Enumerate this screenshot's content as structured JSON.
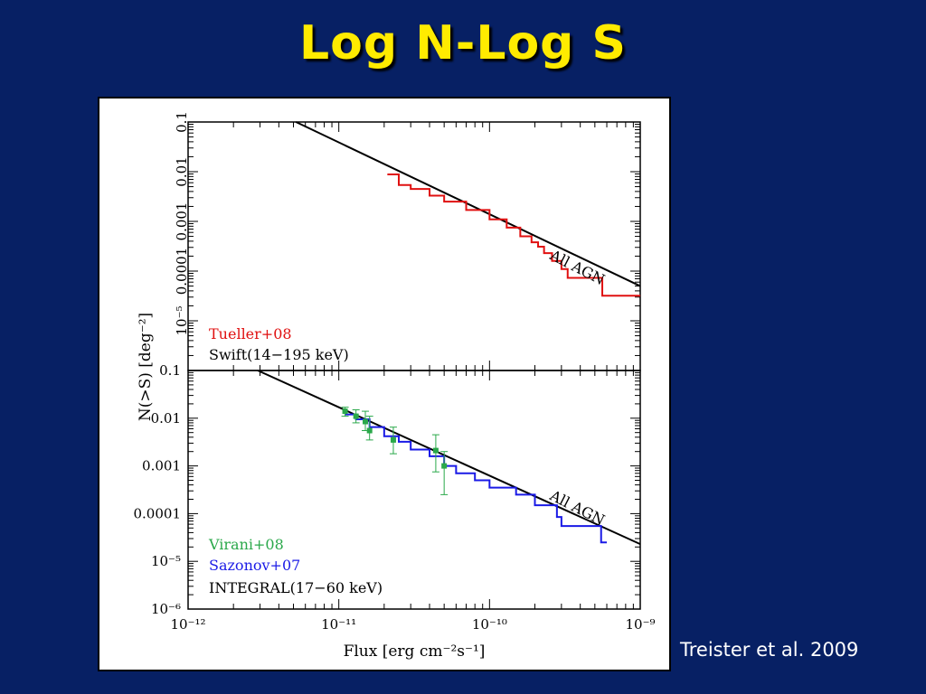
{
  "slide": {
    "title": "Log N-Log S",
    "citation": "Treister et al. 2009"
  },
  "colors": {
    "background": "#072064",
    "title": "#ffeb00",
    "tueller": "#e01010",
    "sazonov": "#1a1ae6",
    "virani": "#2aa84a",
    "model": "#000000"
  },
  "chart_data": [
    {
      "type": "line",
      "panel": "top",
      "xscale": "log",
      "yscale": "log",
      "xlim": [
        1e-12,
        1e-09
      ],
      "ylim": [
        1e-06,
        0.1
      ],
      "yticks": [
        {
          "value": 0.1,
          "label": "0.1"
        },
        {
          "value": 0.01,
          "label": "0.01"
        },
        {
          "value": 0.001,
          "label": "0.001"
        },
        {
          "value": 0.0001,
          "label": "0.0001"
        },
        {
          "value": 1e-05,
          "label": "10⁻⁵"
        }
      ],
      "legend": [
        "Tueller+08",
        "Swift(14−195 keV)"
      ],
      "annotation": "All AGN",
      "series": [
        {
          "name": "All AGN",
          "kind": "model",
          "x": [
            5.2e-12,
            1e-09
          ],
          "y": [
            0.1,
            5e-05
          ]
        },
        {
          "name": "Tueller+08",
          "kind": "step",
          "x": [
            2.1e-11,
            2.5e-11,
            3e-11,
            4e-11,
            5e-11,
            7e-11,
            1e-10,
            1.3e-10,
            1.6e-10,
            1.9e-10,
            2.1e-10,
            2.3e-10,
            2.6e-10,
            3e-10,
            3.3e-10,
            5.6e-10,
            1e-09
          ],
          "y": [
            0.0088,
            0.0054,
            0.0045,
            0.0033,
            0.0025,
            0.0017,
            0.0011,
            0.00075,
            0.0005,
            0.00038,
            0.00031,
            0.00023,
            0.00016,
            0.00011,
            7.3e-05,
            3.2e-05,
            3.2e-05
          ]
        }
      ]
    },
    {
      "type": "scatter",
      "panel": "bottom",
      "xscale": "log",
      "yscale": "log",
      "xlim": [
        1e-12,
        1e-09
      ],
      "ylim": [
        1e-06,
        0.1
      ],
      "xticks": [
        {
          "value": 1e-12,
          "label": "10⁻¹²"
        },
        {
          "value": 1e-11,
          "label": "10⁻¹¹"
        },
        {
          "value": 1e-10,
          "label": "10⁻¹⁰"
        },
        {
          "value": 1e-09,
          "label": "10⁻⁹"
        }
      ],
      "yticks": [
        {
          "value": 0.1,
          "label": "0.1"
        },
        {
          "value": 0.01,
          "label": "0.01"
        },
        {
          "value": 0.001,
          "label": "0.001"
        },
        {
          "value": 0.0001,
          "label": "0.0001"
        },
        {
          "value": 1e-05,
          "label": "10⁻⁵"
        },
        {
          "value": 1e-06,
          "label": "10⁻⁶"
        }
      ],
      "xlabel": "Flux [erg cm⁻²s⁻¹]",
      "ylabel": "N(>S) [deg⁻²]",
      "legend": [
        "Virani+08",
        "Sazonov+07",
        "INTEGRAL(17−60 keV)"
      ],
      "annotation": "All AGN",
      "series": [
        {
          "name": "All AGN",
          "kind": "model",
          "x": [
            2.9e-12,
            1e-09
          ],
          "y": [
            0.1,
            2.3e-05
          ]
        },
        {
          "name": "Sazonov+07",
          "kind": "step",
          "x": [
            1.1e-11,
            1.3e-11,
            1.6e-11,
            2e-11,
            2.5e-11,
            3e-11,
            4e-11,
            5e-11,
            6e-11,
            8e-11,
            1e-10,
            1.5e-10,
            2e-10,
            2.8e-10,
            3e-10,
            4e-10,
            5e-10,
            5.5e-10,
            6e-10
          ],
          "y": [
            0.012,
            0.0095,
            0.0065,
            0.0042,
            0.0032,
            0.0022,
            0.0016,
            0.001,
            0.0007,
            0.0005,
            0.00035,
            0.00025,
            0.00015,
            8.5e-05,
            5.5e-05,
            5.5e-05,
            5.5e-05,
            2.5e-05,
            2.5e-05
          ]
        },
        {
          "name": "Virani+08",
          "kind": "points",
          "x": [
            1.1e-11,
            1.3e-11,
            1.5e-11,
            1.6e-11,
            2.3e-11,
            4.4e-11,
            5e-11
          ],
          "y": [
            0.014,
            0.011,
            0.0085,
            0.0055,
            0.0035,
            0.0021,
            0.001
          ],
          "ylo": [
            0.011,
            0.008,
            0.0055,
            0.0035,
            0.0018,
            0.00075,
            0.00025
          ],
          "yhi": [
            0.017,
            0.015,
            0.014,
            0.011,
            0.0065,
            0.0045,
            0.002
          ]
        }
      ]
    }
  ]
}
